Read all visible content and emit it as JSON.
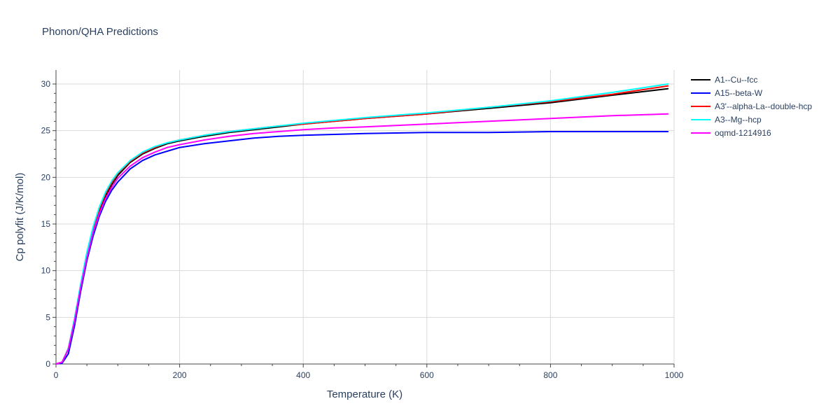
{
  "chart_data": {
    "type": "line",
    "title": "Phonon/QHA Predictions",
    "xlabel": "Temperature (K)",
    "ylabel": "Cp polyfit (J/K/mol)",
    "xlim": [
      0,
      1000
    ],
    "ylim": [
      0,
      31.5
    ],
    "xticks": [
      0,
      200,
      400,
      600,
      800,
      1000
    ],
    "yticks": [
      0,
      5,
      10,
      15,
      20,
      25,
      30
    ],
    "grid": true,
    "legend_position": "top-right",
    "x": [
      0,
      10,
      20,
      30,
      40,
      50,
      60,
      70,
      80,
      90,
      100,
      120,
      140,
      160,
      180,
      200,
      240,
      280,
      320,
      360,
      400,
      450,
      500,
      600,
      700,
      800,
      900,
      990
    ],
    "series": [
      {
        "name": "A1--Cu--fcc",
        "color": "#000000",
        "values": [
          0,
          0.2,
          1.6,
          4.7,
          8.3,
          11.6,
          14.3,
          16.4,
          18.0,
          19.2,
          20.2,
          21.6,
          22.5,
          23.1,
          23.6,
          23.9,
          24.4,
          24.8,
          25.1,
          25.4,
          25.7,
          26.0,
          26.3,
          26.8,
          27.4,
          28.0,
          28.8,
          29.5
        ]
      },
      {
        "name": "A15--beta-W",
        "color": "#0000ff",
        "values": [
          0,
          0.1,
          1.1,
          4.1,
          7.8,
          11.1,
          13.7,
          15.8,
          17.4,
          18.6,
          19.5,
          20.9,
          21.8,
          22.4,
          22.8,
          23.2,
          23.6,
          23.9,
          24.2,
          24.4,
          24.5,
          24.6,
          24.7,
          24.8,
          24.8,
          24.9,
          24.9,
          24.9
        ]
      },
      {
        "name": "A3'--alpha-La--double-hcp",
        "color": "#ff0000",
        "values": [
          0,
          0.2,
          1.7,
          4.8,
          8.4,
          11.8,
          14.5,
          16.6,
          18.2,
          19.4,
          20.4,
          21.7,
          22.6,
          23.2,
          23.7,
          24.0,
          24.5,
          24.9,
          25.2,
          25.5,
          25.7,
          26.0,
          26.3,
          26.8,
          27.5,
          28.1,
          28.9,
          29.8
        ]
      },
      {
        "name": "A3--Mg--hcp",
        "color": "#00ffff",
        "values": [
          0,
          0.2,
          1.7,
          4.9,
          8.6,
          12.0,
          14.7,
          16.8,
          18.4,
          19.6,
          20.5,
          21.8,
          22.7,
          23.3,
          23.7,
          24.0,
          24.5,
          24.9,
          25.2,
          25.5,
          25.8,
          26.1,
          26.4,
          26.9,
          27.5,
          28.2,
          29.1,
          30.0
        ]
      },
      {
        "name": "oqmd-1214916",
        "color": "#ff00ff",
        "values": [
          0,
          0.2,
          1.6,
          4.6,
          8.2,
          11.4,
          14.1,
          16.1,
          17.7,
          18.9,
          19.9,
          21.2,
          22.1,
          22.7,
          23.2,
          23.5,
          24.0,
          24.4,
          24.7,
          24.9,
          25.1,
          25.3,
          25.4,
          25.7,
          26.0,
          26.3,
          26.6,
          26.8
        ]
      }
    ]
  }
}
